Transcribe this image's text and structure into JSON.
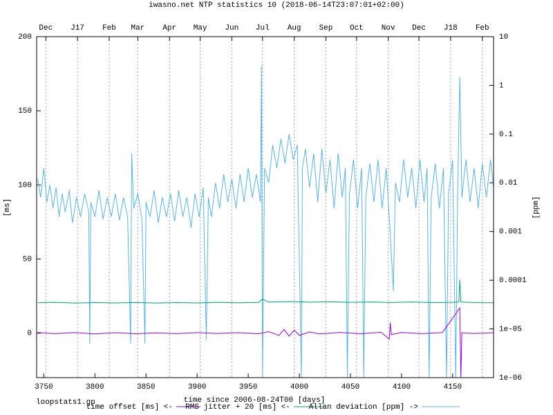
{
  "chart_data": {
    "type": "line",
    "title": "iwasno.net NTP statistics 10 (2018-06-14T23:07:01+02:00)",
    "xlabel": "time since 2006-08-24T00 [days]",
    "ylabel": "[ms]",
    "y2label": "[ppm]",
    "footnote": "loopstats1.gp",
    "xlim": [
      3743,
      4190
    ],
    "xticks": [
      3750,
      3800,
      3850,
      3900,
      3950,
      4000,
      4050,
      4100,
      4150
    ],
    "x2ticks": [
      {
        "value": 3752,
        "label": "Dec"
      },
      {
        "value": 3783,
        "label": "J17"
      },
      {
        "value": 3814,
        "label": "Feb"
      },
      {
        "value": 3842,
        "label": "Mar"
      },
      {
        "value": 3873,
        "label": "Apr"
      },
      {
        "value": 3903,
        "label": "May"
      },
      {
        "value": 3934,
        "label": "Jun"
      },
      {
        "value": 3964,
        "label": "Jul"
      },
      {
        "value": 3995,
        "label": "Aug"
      },
      {
        "value": 4026,
        "label": "Sep"
      },
      {
        "value": 4056,
        "label": "Oct"
      },
      {
        "value": 4087,
        "label": "Nov"
      },
      {
        "value": 4117,
        "label": "Dec"
      },
      {
        "value": 4148,
        "label": "J18"
      },
      {
        "value": 4179,
        "label": "Feb"
      }
    ],
    "x2grid": true,
    "ylim": [
      -30,
      200
    ],
    "yticks": [
      0,
      50,
      100,
      150,
      200
    ],
    "y2lim": [
      1e-06,
      10
    ],
    "y2log": true,
    "y2ticks": [
      10,
      1,
      0.1,
      0.01,
      0.001,
      0.0001,
      {
        "value": 1e-05,
        "label": "1e-05"
      },
      {
        "value": 1e-06,
        "label": "1e-06"
      }
    ],
    "series": [
      {
        "name": "time offset [ms] <-",
        "color": "#9400d3",
        "x": [
          3744,
          3760,
          3780,
          3800,
          3820,
          3840,
          3860,
          3880,
          3900,
          3920,
          3940,
          3960,
          3970,
          3980,
          3985,
          3990,
          3995,
          4000,
          4010,
          4020,
          4040,
          4060,
          4080,
          4088,
          4089,
          4090,
          4100,
          4120,
          4140,
          4157,
          4158,
          4159,
          4170,
          4190
        ],
        "values": [
          0.5,
          -0.3,
          0.4,
          -0.5,
          0.3,
          -0.4,
          0.2,
          -0.3,
          0.4,
          -0.2,
          0.3,
          -0.4,
          1,
          -1.5,
          2.5,
          -2,
          2,
          -1.5,
          0.8,
          -0.5,
          0.5,
          -0.4,
          0.6,
          -4,
          7,
          -1,
          0.5,
          -0.3,
          0.4,
          17,
          -30,
          0.3,
          -0.2,
          0.3
        ]
      },
      {
        "name": "RMS jitter + 20 [ms] <-",
        "color": "#009e73",
        "x": [
          3744,
          3760,
          3780,
          3800,
          3820,
          3840,
          3860,
          3880,
          3900,
          3920,
          3940,
          3960,
          3964,
          3970,
          3990,
          4010,
          4030,
          4050,
          4070,
          4090,
          4110,
          4130,
          4150,
          4156,
          4157,
          4158,
          4170,
          4190
        ],
        "values": [
          20.5,
          20.8,
          20.3,
          20.6,
          20.4,
          20.7,
          20.3,
          20.6,
          20.4,
          20.8,
          20.5,
          20.7,
          23,
          21,
          21.3,
          20.9,
          21.2,
          20.8,
          21,
          20.7,
          21,
          20.6,
          20.8,
          21,
          36,
          21,
          20.6,
          20.5
        ]
      },
      {
        "name": "Allan deviation [ppm] ->",
        "color": "#56b4e9",
        "axis": "y2",
        "x": [
          3744,
          3747,
          3750,
          3753,
          3756,
          3759,
          3762,
          3765,
          3768,
          3771,
          3775,
          3778,
          3782,
          3786,
          3790,
          3794,
          3795,
          3796,
          3800,
          3804,
          3808,
          3812,
          3816,
          3820,
          3824,
          3828,
          3832,
          3835,
          3836,
          3838,
          3842,
          3846,
          3849,
          3850,
          3854,
          3858,
          3862,
          3866,
          3870,
          3874,
          3878,
          3882,
          3886,
          3890,
          3894,
          3898,
          3902,
          3906,
          3909,
          3911,
          3914,
          3918,
          3922,
          3926,
          3930,
          3934,
          3938,
          3942,
          3946,
          3950,
          3954,
          3958,
          3962,
          3963,
          3964,
          3966,
          3970,
          3974,
          3978,
          3982,
          3986,
          3990,
          3994,
          3998,
          4002,
          4003,
          4006,
          4010,
          4014,
          4018,
          4022,
          4026,
          4030,
          4034,
          4038,
          4042,
          4045,
          4047,
          4049,
          4053,
          4057,
          4061,
          4063,
          4065,
          4069,
          4073,
          4077,
          4081,
          4085,
          4088,
          4092,
          4094,
          4098,
          4102,
          4106,
          4110,
          4114,
          4118,
          4122,
          4125,
          4127,
          4129,
          4133,
          4137,
          4141,
          4144,
          4146,
          4150,
          4153,
          4155,
          4157,
          4159,
          4163,
          4167,
          4171,
          4175,
          4179,
          4183,
          4187,
          4190
        ],
        "values": [
          0.012,
          0.005,
          0.02,
          0.004,
          0.009,
          0.003,
          0.008,
          0.002,
          0.006,
          0.0025,
          0.007,
          0.0015,
          0.005,
          0.002,
          0.006,
          0.0025,
          5e-06,
          0.004,
          0.002,
          0.007,
          0.0018,
          0.005,
          0.002,
          0.006,
          0.0017,
          0.005,
          0.002,
          5e-06,
          0.04,
          0.003,
          0.006,
          0.0018,
          5e-06,
          0.004,
          0.002,
          0.007,
          0.0015,
          0.005,
          0.002,
          0.006,
          0.0016,
          0.007,
          0.002,
          0.005,
          0.0012,
          0.006,
          0.002,
          0.008,
          6e-06,
          0.005,
          0.002,
          0.01,
          0.003,
          0.015,
          0.004,
          0.012,
          0.003,
          0.015,
          0.004,
          0.02,
          0.005,
          0.015,
          0.004,
          2.5,
          1e-06,
          0.02,
          0.01,
          0.06,
          0.02,
          0.08,
          0.025,
          0.1,
          0.03,
          0.06,
          1e-06,
          0.02,
          0.05,
          0.008,
          0.04,
          0.004,
          0.05,
          0.006,
          0.03,
          0.003,
          0.04,
          0.005,
          0.02,
          1e-06,
          0.006,
          0.03,
          0.003,
          0.02,
          1e-06,
          0.005,
          0.025,
          0.004,
          0.03,
          0.003,
          0.02,
          0.002,
          6e-05,
          0.01,
          0.004,
          0.03,
          0.005,
          0.02,
          0.003,
          0.03,
          0.004,
          0.02,
          1e-06,
          0.005,
          0.025,
          0.003,
          0.02,
          1e-06,
          0.006,
          0.03,
          1e-06,
          0.01,
          1.5,
          0.005,
          0.03,
          0.004,
          0.02,
          0.003,
          0.025,
          0.005,
          0.03,
          0.008
        ]
      }
    ]
  }
}
